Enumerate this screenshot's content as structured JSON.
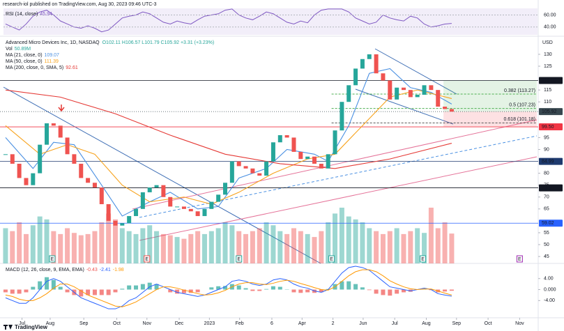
{
  "header": "research-iol published on TradingView.com, Aug 30, 2023 09:46 UTC-3",
  "footer": "TradingView",
  "chart_data": {
    "type": "candlestick",
    "title": "Advanced Micro Devices Inc, 1D, NASDAQ",
    "ohlc_label": "O102.11 H106.57 L101.79 C105.92 +3.31 (+3.23%)",
    "currency": "USD",
    "x": [
      0,
      1,
      2,
      3,
      4,
      5,
      6,
      7,
      8,
      9,
      10,
      11,
      12,
      13,
      14,
      15,
      16,
      17,
      18,
      19,
      20,
      21,
      22,
      23,
      24,
      25,
      26,
      27,
      28,
      29,
      30,
      31,
      32,
      33,
      34,
      35,
      36,
      37,
      38,
      39,
      40,
      41,
      42,
      43,
      44,
      45,
      46,
      47,
      48,
      49,
      50,
      51,
      52,
      53,
      54,
      55,
      56,
      57,
      58,
      59,
      60,
      61,
      62,
      63,
      64,
      65
    ],
    "close": [
      88,
      84,
      78,
      75,
      80,
      92,
      101,
      100,
      95,
      88,
      84,
      78,
      76,
      74,
      67,
      60,
      58,
      59,
      62,
      65,
      72,
      74,
      75,
      70,
      66,
      66,
      65,
      64,
      62,
      65,
      68,
      71,
      76,
      85,
      83,
      82,
      80,
      79,
      85,
      93,
      96,
      95,
      89,
      86,
      87,
      84,
      82,
      88,
      98,
      110,
      117,
      124,
      128,
      130,
      122,
      119,
      111,
      116,
      115,
      112,
      113,
      117,
      115,
      108,
      107,
      105.92
    ],
    "up_color": "#26a69a",
    "down_color": "#ef5350",
    "xlim": [
      -0.3,
      77.4
    ],
    "xticks": [
      {
        "value": 2.4,
        "label": "Jul"
      },
      {
        "value": 6.5,
        "label": "Aug"
      },
      {
        "value": 11.4,
        "label": "Sep"
      },
      {
        "value": 16.2,
        "label": "Oct"
      },
      {
        "value": 20.6,
        "label": "Nov"
      },
      {
        "value": 25.3,
        "label": "Dec"
      },
      {
        "value": 29.7,
        "label": "2023"
      },
      {
        "value": 34.1,
        "label": "Feb"
      },
      {
        "value": 38.8,
        "label": "6"
      },
      {
        "value": 43.2,
        "label": "Apr"
      },
      {
        "value": 47.7,
        "label": "2"
      },
      {
        "value": 52.1,
        "label": "Jun"
      },
      {
        "value": 56.7,
        "label": "Jul"
      },
      {
        "value": 61.3,
        "label": "Aug"
      },
      {
        "value": 65.7,
        "label": "Sep"
      },
      {
        "value": 70.3,
        "label": "Oct"
      },
      {
        "value": 74.9,
        "label": "Nov"
      }
    ],
    "ylim": [
      42.1,
      137.6
    ],
    "yticks": [
      45,
      50,
      55,
      65,
      70,
      75,
      80,
      90,
      95,
      110,
      115,
      125,
      130
    ],
    "volume": {
      "name": "Vol",
      "legend_value": "50.89M",
      "values": [
        60,
        55,
        70,
        50,
        65,
        80,
        75,
        55,
        50,
        60,
        52,
        48,
        50,
        55,
        70,
        85,
        75,
        60,
        55,
        50,
        60,
        65,
        55,
        50,
        48,
        45,
        42,
        50,
        55,
        50,
        55,
        60,
        70,
        65,
        55,
        50,
        55,
        60,
        70,
        65,
        55,
        50,
        60,
        55,
        50,
        45,
        55,
        70,
        85,
        95,
        80,
        75,
        70,
        60,
        55,
        50,
        55,
        60,
        50,
        55,
        60,
        52,
        95,
        60,
        70,
        50.89
      ]
    },
    "moving_averages": [
      {
        "name": "MA (21, close, 0)",
        "legend_value": "109.07",
        "color": "#4a90e2",
        "x": [
          0,
          4,
          7,
          10,
          14,
          17,
          21,
          24,
          28,
          31,
          34,
          38,
          41,
          45,
          47,
          50,
          53,
          56,
          59,
          62,
          65
        ],
        "values": [
          95,
          82,
          93,
          92,
          75,
          62,
          68,
          72,
          65,
          66,
          78,
          82,
          90,
          88,
          85,
          100,
          122,
          124,
          116,
          114,
          109.07
        ]
      },
      {
        "name": "MA (50, close, 0)",
        "legend_value": "111.39",
        "color": "#f7a21b",
        "x": [
          0,
          5,
          9,
          13,
          17,
          21,
          26,
          30,
          34,
          39,
          44,
          48,
          52,
          56,
          60,
          65
        ],
        "values": [
          100,
          88,
          92,
          88,
          75,
          68,
          70,
          67,
          72,
          80,
          86,
          88,
          100,
          112,
          115,
          111.39
        ]
      },
      {
        "name": "MA (200, close, 0, SMA, 5)",
        "legend_value": "92.61",
        "color": "#e53935",
        "x": [
          0,
          8,
          16,
          24,
          32,
          40,
          48,
          56,
          65
        ],
        "values": [
          115,
          112,
          105,
          96,
          88,
          84,
          82,
          86,
          92.61
        ]
      }
    ],
    "price_lines": [
      {
        "value": 119,
        "label": "119.00",
        "color": "#131722"
      },
      {
        "value": 105.92,
        "label": "105.92",
        "color": "#37474f"
      },
      {
        "value": 99.5,
        "label": "99.50",
        "color": "#f23645"
      },
      {
        "value": 84.99,
        "label": "84.99",
        "color": "#1e3a6e"
      },
      {
        "value": 73.86,
        "label": "73.86",
        "color": "#131722"
      },
      {
        "value": 59.02,
        "label": "59.02",
        "color": "#2962ff"
      }
    ],
    "fib_levels": [
      {
        "value": 113.27,
        "label": "0.382 (113.27)",
        "color": "#4caf50"
      },
      {
        "value": 107.23,
        "label": "0.5 (107.23)",
        "color": "#4caf50"
      },
      {
        "value": 101.18,
        "label": "0.618 (101.18)",
        "color": "#555555"
      }
    ],
    "earnings": [
      {
        "x": 6.8,
        "label": "E",
        "color": "#26a69a"
      },
      {
        "x": 20.6,
        "label": "E",
        "color": "#ef5350"
      },
      {
        "x": 34.0,
        "label": "E",
        "color": "#26a69a"
      },
      {
        "x": 47.5,
        "label": "E",
        "color": "#26a69a"
      },
      {
        "x": 60.8,
        "label": "E",
        "color": "#26a69a"
      },
      {
        "x": 74.9,
        "label": "E",
        "color": "#9c27b0"
      }
    ],
    "rsi": {
      "name": "RSI (14, close)",
      "legend_value": "45.94",
      "color": "#7e57c2",
      "values": [
        45,
        40,
        35,
        45,
        58,
        65,
        68,
        60,
        50,
        45,
        40,
        38,
        42,
        38,
        32,
        35,
        45,
        55,
        58,
        60,
        65,
        62,
        55,
        48,
        45,
        50,
        47,
        45,
        52,
        58,
        60,
        62,
        68,
        70,
        60,
        55,
        52,
        58,
        65,
        62,
        55,
        48,
        45,
        50,
        47,
        60,
        68,
        70,
        70,
        70,
        65,
        55,
        50,
        45,
        48,
        60,
        55,
        52,
        50,
        58,
        55,
        45,
        40,
        42,
        45,
        45.94
      ],
      "ylim": [
        27,
        71
      ],
      "yticks": [
        {
          "value": 60,
          "label": "60.00"
        },
        {
          "value": 40,
          "label": "40.00"
        }
      ]
    },
    "macd": {
      "name": "MACD (12, 26, close, 9, EMA, EMA)",
      "legend_values": [
        "-0.43",
        "-2.41",
        "-1.98"
      ],
      "macd": [
        -3,
        -4,
        -5,
        -5,
        -3,
        0,
        3,
        4,
        3,
        1,
        -1,
        -3,
        -4,
        -5,
        -6,
        -7,
        -7,
        -6,
        -4,
        -3,
        -1,
        1,
        2,
        1,
        0,
        -1,
        -1.5,
        -2,
        -2.5,
        -2,
        -1,
        0,
        1,
        3,
        3.5,
        3,
        2,
        1.5,
        2,
        3.5,
        4,
        3.5,
        2,
        1,
        0.5,
        -0.5,
        -1,
        0,
        3,
        6,
        8,
        8.5,
        8,
        7,
        5,
        3,
        1,
        0.5,
        0,
        -0.5,
        0,
        0.5,
        0,
        -1.5,
        -2,
        -2.41
      ],
      "signal": [
        -2,
        -2.5,
        -3.5,
        -4,
        -4,
        -3,
        -1.5,
        0.5,
        2,
        2,
        1,
        -0.5,
        -2,
        -3,
        -4,
        -5,
        -6,
        -6.3,
        -5.5,
        -4.5,
        -3,
        -1.5,
        0,
        1,
        1,
        0.5,
        -0.2,
        -0.8,
        -1.5,
        -2,
        -1.8,
        -1.2,
        -0.3,
        1,
        2,
        2.5,
        2.5,
        2,
        1.8,
        2.3,
        3,
        3.4,
        3,
        2.2,
        1.5,
        0.7,
        0,
        -0.2,
        1,
        3,
        5,
        6.5,
        7.2,
        7.2,
        6.5,
        5,
        3.2,
        2,
        1,
        0.3,
        0,
        0.2,
        0.2,
        -0.5,
        -1.3,
        -1.98
      ],
      "histogram": [
        -1,
        -1.5,
        -1.5,
        -1,
        1,
        3,
        4.5,
        3.5,
        1,
        -1,
        -2,
        -2.5,
        -2,
        -2,
        -2,
        -2,
        -1,
        0.3,
        1.5,
        1.5,
        2,
        2.5,
        2,
        0,
        -1,
        -1.5,
        -1.3,
        -1.2,
        -1,
        0,
        0.8,
        1.2,
        1.3,
        2,
        1.5,
        0.5,
        -0.5,
        -0.5,
        0.2,
        1.2,
        1,
        0.1,
        -1,
        -1.2,
        -1,
        -1.2,
        -1,
        0.2,
        2,
        3,
        3,
        2,
        0.8,
        -0.2,
        -1.5,
        -2,
        -2.2,
        -1.5,
        -1,
        -0.8,
        0,
        0.3,
        -0.2,
        -1,
        -0.7,
        -0.43
      ],
      "macd_color": "#2962ff",
      "signal_color": "#ff9800",
      "hist_up_color": "#26a69a",
      "hist_down_color": "#ef5350",
      "ylim": [
        -10,
        9
      ],
      "yticks": [
        {
          "value": 4,
          "label": "4.00"
        },
        {
          "value": 0,
          "label": "0.000"
        },
        {
          "value": -4,
          "label": "-4.00"
        }
      ]
    }
  }
}
